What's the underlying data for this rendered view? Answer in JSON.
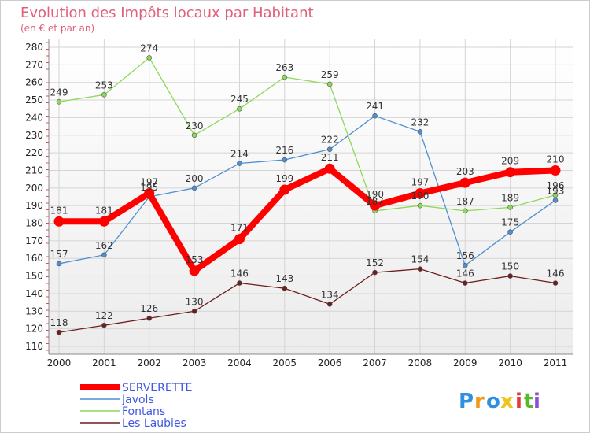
{
  "chart_data": {
    "type": "line",
    "title": "Evolution des Impôts locaux par Habitant",
    "subtitle": "(en € et par an)",
    "xlabel": "",
    "ylabel": "",
    "x": [
      "2000",
      "2001",
      "2002",
      "2003",
      "2004",
      "2005",
      "2006",
      "2007",
      "2008",
      "2009",
      "2010",
      "2011"
    ],
    "ylim": [
      110,
      280
    ],
    "yticks": [
      110,
      120,
      130,
      140,
      150,
      160,
      170,
      180,
      190,
      200,
      210,
      220,
      230,
      240,
      250,
      260,
      270,
      280
    ],
    "grid": true,
    "legend_position": "bottom-left",
    "series": [
      {
        "name": "SERVERETTE",
        "color": "#ff0000",
        "values": [
          181,
          181,
          197,
          153,
          171,
          199,
          211,
          190,
          197,
          203,
          209,
          210
        ]
      },
      {
        "name": "Javols",
        "color": "#4f8fd0",
        "values": [
          157,
          162,
          195,
          200,
          214,
          216,
          222,
          241,
          232,
          156,
          175,
          193
        ]
      },
      {
        "name": "Fontans",
        "color": "#8ed85a",
        "values": [
          249,
          253,
          274,
          230,
          245,
          263,
          259,
          187,
          190,
          187,
          189,
          196
        ]
      },
      {
        "name": "Les Laubies",
        "color": "#6e1e1e",
        "values": [
          118,
          122,
          126,
          130,
          146,
          143,
          134,
          152,
          154,
          146,
          150,
          146
        ]
      }
    ]
  },
  "legend": {
    "label_color": "#3f57e0"
  },
  "logo": {
    "letters": [
      "P",
      "r",
      "o",
      "x",
      "i",
      "t",
      "i"
    ],
    "colors": [
      "#2f8fe0",
      "#f09a1a",
      "#2f8fe0",
      "#f0c419",
      "#e23a3a",
      "#5ab82f",
      "#8a4fd6"
    ]
  }
}
